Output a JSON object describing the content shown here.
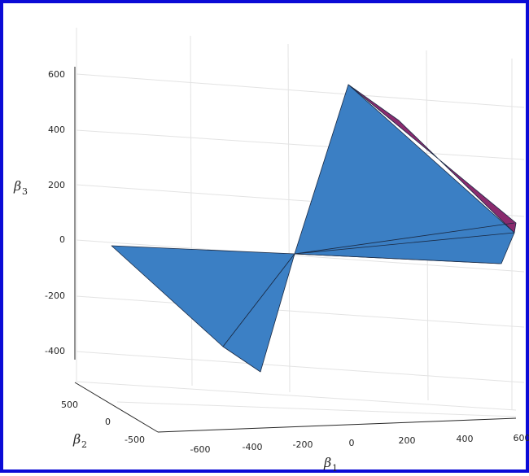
{
  "chart_data": {
    "type": "surface3d",
    "axes": {
      "x": {
        "label": "β",
        "label_sub": "1",
        "ticks": [
          "-600",
          "-400",
          "-200",
          "0",
          "200",
          "400",
          "600"
        ]
      },
      "y": {
        "label": "β",
        "label_sub": "2",
        "ticks": [
          "500",
          "0",
          "-500"
        ]
      },
      "z": {
        "label": "β",
        "label_sub": "3",
        "ticks": [
          "600",
          "400",
          "200",
          "0",
          "-200",
          "-400"
        ]
      }
    },
    "xlim": [
      -600,
      600
    ],
    "ylim": [
      -500,
      500
    ],
    "zlim": [
      -500,
      650
    ],
    "grid": true,
    "colors": {
      "frame": "#0b0bd6",
      "face": "#3b7fc4",
      "top_face": "#8a2b6e",
      "edge": "#1a2a44",
      "grid": "#e3e3e3"
    }
  }
}
